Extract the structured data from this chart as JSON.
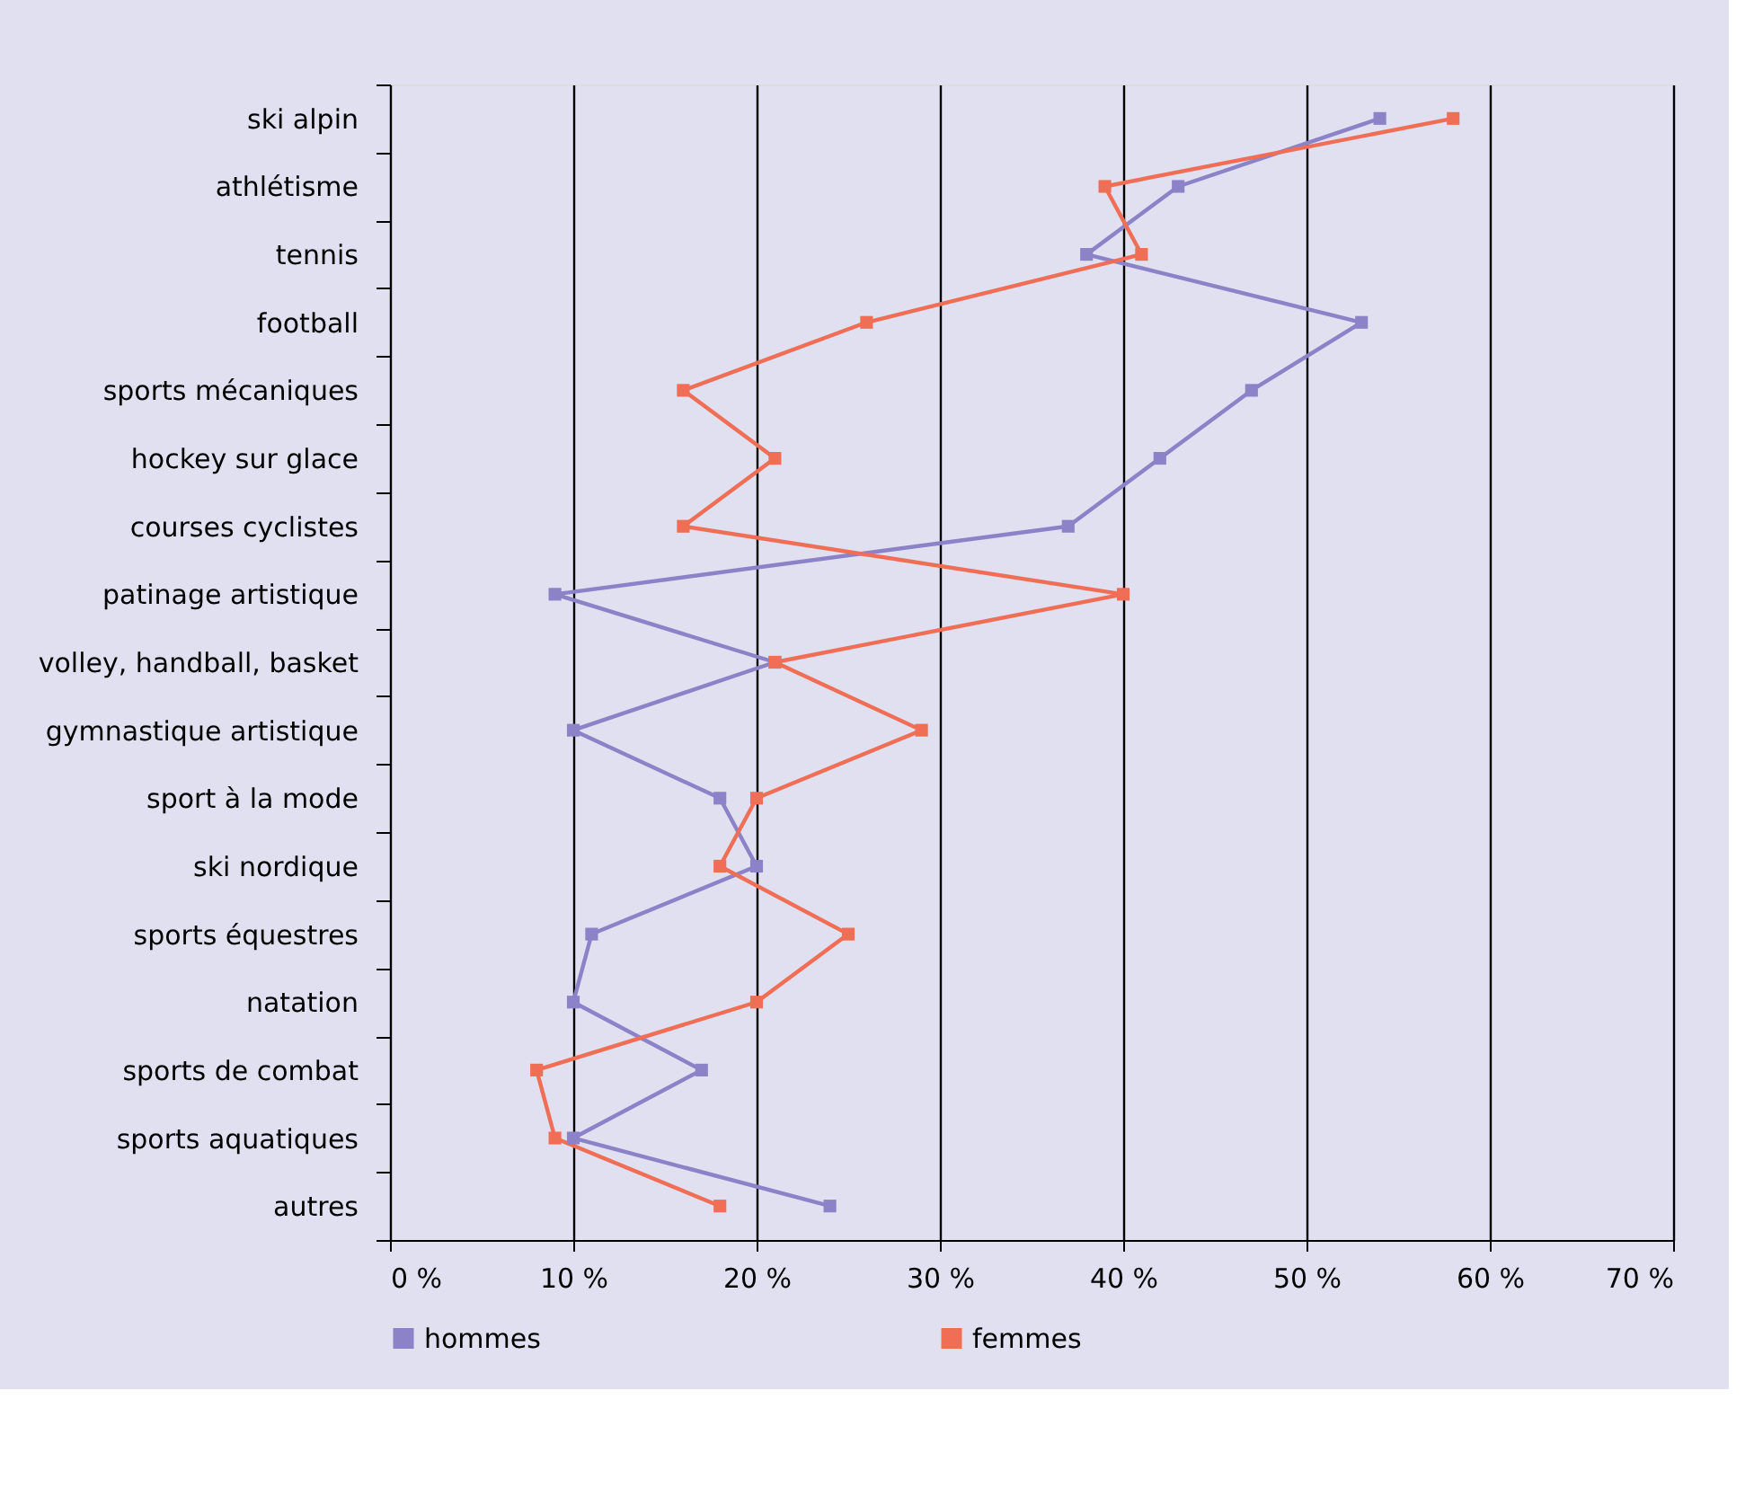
{
  "chart_data": {
    "type": "line",
    "orientation": "horizontal",
    "categories": [
      "ski alpin",
      "athlétisme",
      "tennis",
      "football",
      "sports mécaniques",
      "hockey sur glace",
      "courses cyclistes",
      "patinage artistique",
      "volley, handball, basket",
      "gymnastique artistique",
      "sport à la mode",
      "ski nordique",
      "sports équestres",
      "natation",
      "sports de combat",
      "sports aquatiques",
      "autres"
    ],
    "series": [
      {
        "name": "hommes",
        "color": "#8b82c8",
        "values": [
          54,
          43,
          38,
          53,
          47,
          42,
          37,
          9,
          21,
          10,
          18,
          20,
          11,
          10,
          17,
          10,
          24
        ]
      },
      {
        "name": "femmes",
        "color": "#f06e55",
        "values": [
          58,
          39,
          41,
          26,
          16,
          21,
          16,
          40,
          21,
          29,
          20,
          18,
          25,
          20,
          8,
          9,
          18
        ]
      }
    ],
    "xlim": [
      0,
      70
    ],
    "xticks": [
      {
        "value": 0,
        "label": "0 %"
      },
      {
        "value": 10,
        "label": "10 %"
      },
      {
        "value": 20,
        "label": "20 %"
      },
      {
        "value": 30,
        "label": "30 %"
      },
      {
        "value": 40,
        "label": "40 %"
      },
      {
        "value": 50,
        "label": "50 %"
      },
      {
        "value": 60,
        "label": "60 %"
      },
      {
        "value": 70,
        "label": "70 %"
      }
    ],
    "grid": "x",
    "legend": "bottom",
    "marker": "square",
    "line_style": "solid"
  }
}
